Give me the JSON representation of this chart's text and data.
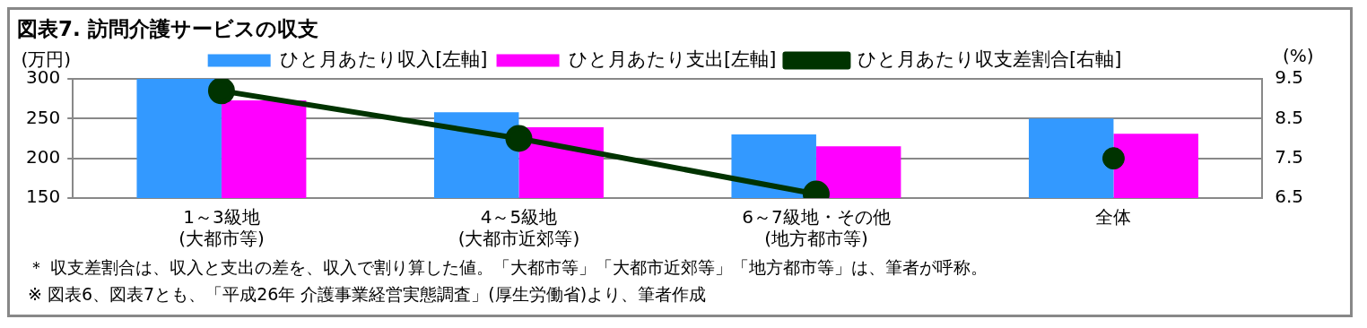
{
  "chart_data": {
    "type": "bar",
    "title": "図表7.  訪問介護サービスの収支",
    "ylabel": "(万円)",
    "y2label": "(%)",
    "categories": [
      "1～3級地\n(大都市等)",
      "4～5級地\n(大都市近郊等)",
      "6～7級地・その他\n(地方都市等)",
      "全体"
    ],
    "series": [
      {
        "name": "ひと月あたり収入[左軸]",
        "color": "#3399ff",
        "values": [
          300,
          258,
          230,
          250
        ]
      },
      {
        "name": "ひと月あたり支出[左軸]",
        "color": "#ff00ff",
        "values": [
          273,
          239,
          215,
          231
        ]
      },
      {
        "name": "ひと月あたり収支差割合[右軸]",
        "type": "line",
        "axis": "y2",
        "color": "#003300",
        "values": [
          9.2,
          8.0,
          6.6,
          null
        ]
      },
      {
        "type": "scatter",
        "axis": "y2",
        "color": "#003300",
        "values": [
          null,
          null,
          null,
          7.5
        ]
      }
    ],
    "ylim": [
      150,
      300
    ],
    "yticks": [
      150,
      200,
      250,
      300
    ],
    "y2lim": [
      6.5,
      9.5
    ],
    "y2ticks": [
      6.5,
      7.5,
      8.5,
      9.5
    ],
    "grid": "y",
    "legend": "top",
    "marker": "circle",
    "annotations": [
      "＊  収支差割合は、収入と支出の差を、収入で割り算した値。「大都市等」「大都市近郊等」「地方都市等」は、筆者が呼称。",
      "※ 図表6、図表7とも、「平成26年 介護事業経営実態調査」(厚生労働省)より、筆者作成"
    ]
  }
}
